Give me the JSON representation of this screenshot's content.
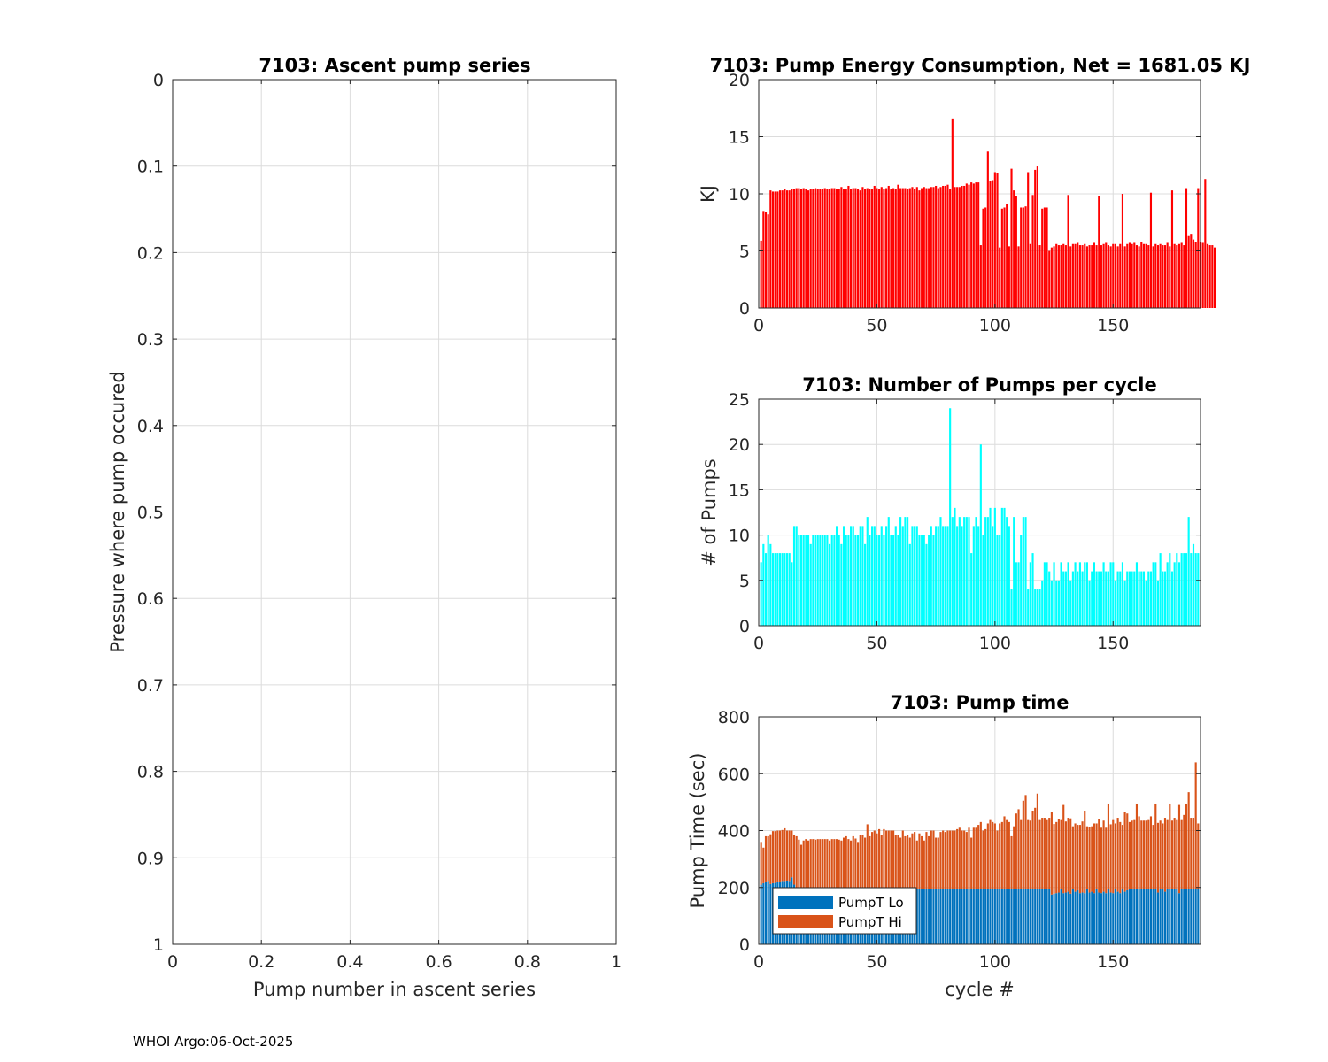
{
  "footer": "WHOI Argo:06-Oct-2025",
  "chart_data": [
    {
      "id": "ascent",
      "type": "line",
      "title": "7103: Ascent pump series",
      "xlabel": "Pump number in ascent series",
      "ylabel": "Pressure where pump occured",
      "xlim": [
        0,
        1
      ],
      "ylim": [
        0,
        1
      ],
      "y_reversed": true,
      "xticks": [
        0,
        0.2,
        0.4,
        0.6,
        0.8,
        1
      ],
      "xtick_labels": [
        "0",
        "0.2",
        "0.4",
        "0.6",
        "0.8",
        "1"
      ],
      "yticks": [
        0,
        0.1,
        0.2,
        0.3,
        0.4,
        0.5,
        0.6,
        0.7,
        0.8,
        0.9,
        1
      ],
      "ytick_labels": [
        "0",
        "0.1",
        "0.2",
        "0.3",
        "0.4",
        "0.5",
        "0.6",
        "0.7",
        "0.8",
        "0.9",
        "1"
      ],
      "grid": true,
      "series": []
    },
    {
      "id": "energy",
      "type": "bar",
      "title": "7103: Pump Energy Consumption,  Net = 1681.05 KJ",
      "xlabel": "",
      "ylabel": "KJ",
      "xlim": [
        0,
        187
      ],
      "ylim": [
        0,
        20
      ],
      "xticks": [
        0,
        50,
        100,
        150
      ],
      "xtick_labels": [
        "0",
        "50",
        "100",
        "150"
      ],
      "yticks": [
        0,
        5,
        10,
        15,
        20
      ],
      "ytick_labels": [
        "0",
        "5",
        "10",
        "15",
        "20"
      ],
      "grid": true,
      "color": "#ff0000",
      "x_start": 1,
      "values": [
        5.9,
        8.5,
        8.4,
        8.2,
        10.3,
        10.2,
        10.2,
        10.2,
        10.3,
        10.3,
        10.4,
        10.3,
        10.3,
        10.4,
        10.4,
        10.5,
        10.5,
        10.4,
        10.5,
        10.4,
        10.3,
        10.4,
        10.4,
        10.5,
        10.4,
        10.4,
        10.4,
        10.5,
        10.4,
        10.4,
        10.5,
        10.5,
        10.4,
        10.4,
        10.6,
        10.4,
        10.4,
        10.7,
        10.4,
        10.5,
        10.5,
        10.4,
        10.3,
        10.6,
        10.4,
        10.5,
        10.4,
        10.4,
        10.7,
        10.5,
        10.4,
        10.6,
        10.4,
        10.5,
        10.7,
        10.4,
        10.5,
        10.4,
        10.8,
        10.5,
        10.5,
        10.5,
        10.4,
        10.5,
        10.6,
        10.4,
        10.6,
        10.3,
        10.5,
        10.6,
        10.5,
        10.5,
        10.6,
        10.6,
        10.7,
        10.5,
        10.6,
        10.7,
        10.7,
        10.8,
        10.4,
        16.6,
        10.6,
        10.6,
        10.6,
        10.7,
        10.7,
        10.9,
        10.8,
        11.0,
        10.9,
        11.0,
        11.0,
        5.5,
        8.7,
        8.8,
        13.7,
        11.1,
        11.2,
        11.9,
        11.8,
        5.3,
        8.7,
        8.8,
        9.1,
        5.4,
        12.2,
        10.3,
        9.8,
        5.4,
        8.8,
        8.8,
        8.9,
        11.9,
        5.6,
        9.9,
        12.1,
        12.4,
        5.5,
        8.7,
        8.8,
        8.8,
        5.0,
        5.3,
        5.4,
        5.6,
        5.5,
        5.5,
        5.6,
        5.5,
        9.9,
        5.4,
        5.6,
        5.6,
        5.7,
        5.5,
        5.5,
        5.6,
        5.4,
        5.5,
        5.5,
        5.7,
        5.5,
        9.8,
        5.5,
        5.6,
        5.7,
        5.5,
        5.4,
        5.6,
        5.6,
        5.4,
        5.6,
        10.0,
        5.4,
        5.6,
        5.7,
        5.6,
        5.7,
        5.5,
        5.4,
        5.8,
        5.6,
        5.6,
        5.5,
        10.1,
        5.4,
        5.6,
        5.5,
        5.6,
        5.5,
        5.5,
        5.7,
        5.4,
        10.3,
        5.6,
        5.5,
        5.6,
        5.7,
        5.5,
        10.5,
        6.3,
        6.5,
        6.0,
        5.8,
        10.5,
        5.8,
        5.7,
        11.3,
        5.6,
        5.5,
        5.5,
        5.3
      ]
    },
    {
      "id": "pumps",
      "type": "bar",
      "title": "7103: Number of Pumps per cycle",
      "xlabel": "",
      "ylabel": "# of Pumps",
      "xlim": [
        0,
        187
      ],
      "ylim": [
        0,
        25
      ],
      "xticks": [
        0,
        50,
        100,
        150
      ],
      "xtick_labels": [
        "0",
        "50",
        "100",
        "150"
      ],
      "yticks": [
        0,
        5,
        10,
        15,
        20,
        25
      ],
      "ytick_labels": [
        "0",
        "5",
        "10",
        "15",
        "20",
        "25"
      ],
      "grid": true,
      "color": "#00ffff",
      "x_start": 1,
      "values": [
        7,
        9,
        8,
        10,
        9,
        8,
        8,
        8,
        8,
        8,
        8,
        8,
        8,
        7,
        11,
        11,
        10,
        10,
        10,
        10,
        10,
        9,
        10,
        10,
        10,
        10,
        10,
        10,
        10,
        9,
        10,
        10,
        11,
        10,
        9,
        11,
        10,
        10,
        11,
        11,
        10,
        10,
        11,
        11,
        9,
        12,
        10,
        11,
        11,
        10,
        10,
        11,
        10,
        11,
        12,
        10,
        10,
        11,
        10,
        12,
        11,
        12,
        12,
        9,
        11,
        11,
        11,
        10,
        10,
        10,
        9,
        10,
        11,
        10,
        11,
        11,
        12,
        11,
        11,
        11,
        24,
        12,
        13,
        11,
        12,
        11,
        12,
        12,
        12,
        8,
        11,
        12,
        11,
        20,
        10,
        12,
        12,
        13,
        11,
        13,
        10,
        10,
        13,
        13,
        12,
        11,
        4,
        12,
        7,
        7,
        10,
        12,
        12,
        4,
        7,
        8,
        4,
        4,
        4,
        5,
        7,
        7,
        6,
        5,
        7,
        5,
        5,
        7,
        6,
        6,
        7,
        5,
        6,
        7,
        6,
        7,
        6,
        7,
        7,
        5,
        6,
        7,
        6,
        6,
        6,
        7,
        6,
        6,
        7,
        7,
        5,
        6,
        6,
        7,
        5,
        6,
        6,
        6,
        6,
        7,
        6,
        6,
        6,
        5,
        6,
        6,
        7,
        7,
        5,
        8,
        6,
        6,
        7,
        8,
        6,
        7,
        8,
        7,
        8,
        8,
        8,
        12,
        8,
        9,
        8,
        8
      ]
    },
    {
      "id": "pumptime",
      "type": "bar",
      "stacked": true,
      "title": "7103: Pump time",
      "xlabel": "cycle #",
      "ylabel": "Pump Time (sec)",
      "xlim": [
        0,
        187
      ],
      "ylim": [
        0,
        800
      ],
      "xticks": [
        0,
        50,
        100,
        150
      ],
      "xtick_labels": [
        "0",
        "50",
        "100",
        "150"
      ],
      "yticks": [
        0,
        200,
        400,
        600,
        800
      ],
      "ytick_labels": [
        "0",
        "200",
        "400",
        "600",
        "800"
      ],
      "grid": true,
      "legend": {
        "placement": "bottom-left",
        "entries": [
          "PumpT Lo",
          "PumpT Hi"
        ]
      },
      "x_start": 1,
      "series": [
        {
          "name": "PumpT Lo",
          "color": "#0072bd",
          "values": [
            210,
            215,
            218,
            220,
            212,
            215,
            216,
            218,
            218,
            220,
            220,
            222,
            220,
            236,
            210,
            200,
            200,
            200,
            200,
            200,
            200,
            200,
            200,
            200,
            200,
            200,
            200,
            200,
            200,
            200,
            200,
            200,
            200,
            200,
            200,
            200,
            200,
            200,
            200,
            200,
            200,
            200,
            200,
            200,
            200,
            200,
            200,
            200,
            200,
            200,
            195,
            195,
            195,
            195,
            195,
            195,
            195,
            195,
            195,
            195,
            195,
            195,
            195,
            195,
            195,
            195,
            195,
            195,
            195,
            195,
            195,
            195,
            195,
            195,
            195,
            195,
            195,
            195,
            195,
            195,
            195,
            195,
            195,
            195,
            195,
            195,
            195,
            195,
            195,
            195,
            195,
            195,
            195,
            195,
            195,
            195,
            195,
            195,
            195,
            195,
            195,
            195,
            195,
            195,
            195,
            195,
            195,
            195,
            195,
            195,
            195,
            195,
            195,
            195,
            195,
            195,
            195,
            195,
            195,
            195,
            195,
            195,
            195,
            175,
            178,
            180,
            182,
            195,
            180,
            182,
            185,
            178,
            195,
            185,
            190,
            180,
            182,
            180,
            195,
            182,
            185,
            180,
            195,
            182,
            180,
            185,
            180,
            195,
            182,
            180,
            195,
            185,
            180,
            195,
            185,
            190,
            195,
            195,
            195,
            195,
            195,
            195,
            195,
            195,
            195,
            195,
            195,
            195,
            182,
            195,
            195,
            185,
            195,
            195,
            195,
            195,
            195,
            180,
            195,
            195,
            195,
            195,
            195,
            195,
            195,
            195
          ]
        },
        {
          "name": "PumpT Hi",
          "color": "#d95319",
          "values": [
            150,
            125,
            162,
            160,
            175,
            183,
            182,
            182,
            182,
            182,
            188,
            178,
            180,
            164,
            175,
            180,
            168,
            150,
            165,
            170,
            165,
            170,
            170,
            168,
            170,
            170,
            170,
            170,
            170,
            165,
            170,
            170,
            170,
            168,
            165,
            175,
            180,
            170,
            165,
            180,
            172,
            160,
            185,
            185,
            175,
            222,
            180,
            195,
            200,
            190,
            210,
            190,
            210,
            205,
            205,
            205,
            205,
            190,
            190,
            180,
            205,
            185,
            190,
            180,
            195,
            200,
            170,
            195,
            185,
            170,
            200,
            185,
            205,
            205,
            180,
            180,
            200,
            205,
            200,
            205,
            205,
            205,
            205,
            210,
            215,
            205,
            205,
            200,
            215,
            180,
            215,
            215,
            225,
            235,
            205,
            210,
            230,
            245,
            235,
            230,
            205,
            230,
            235,
            255,
            245,
            235,
            185,
            220,
            265,
            280,
            245,
            310,
            330,
            245,
            240,
            275,
            285,
            335,
            245,
            250,
            250,
            245,
            250,
            290,
            245,
            250,
            260,
            245,
            310,
            250,
            260,
            265,
            220,
            240,
            230,
            240,
            250,
            290,
            220,
            230,
            230,
            245,
            230,
            260,
            230,
            250,
            230,
            300,
            240,
            260,
            230,
            260,
            250,
            225,
            280,
            270,
            235,
            240,
            245,
            300,
            255,
            240,
            240,
            240,
            245,
            255,
            225,
            300,
            245,
            240,
            230,
            260,
            245,
            300,
            240,
            250,
            245,
            310,
            245,
            260,
            300,
            340,
            250,
            250,
            445,
            230,
            255,
            295
          ]
        }
      ]
    }
  ]
}
